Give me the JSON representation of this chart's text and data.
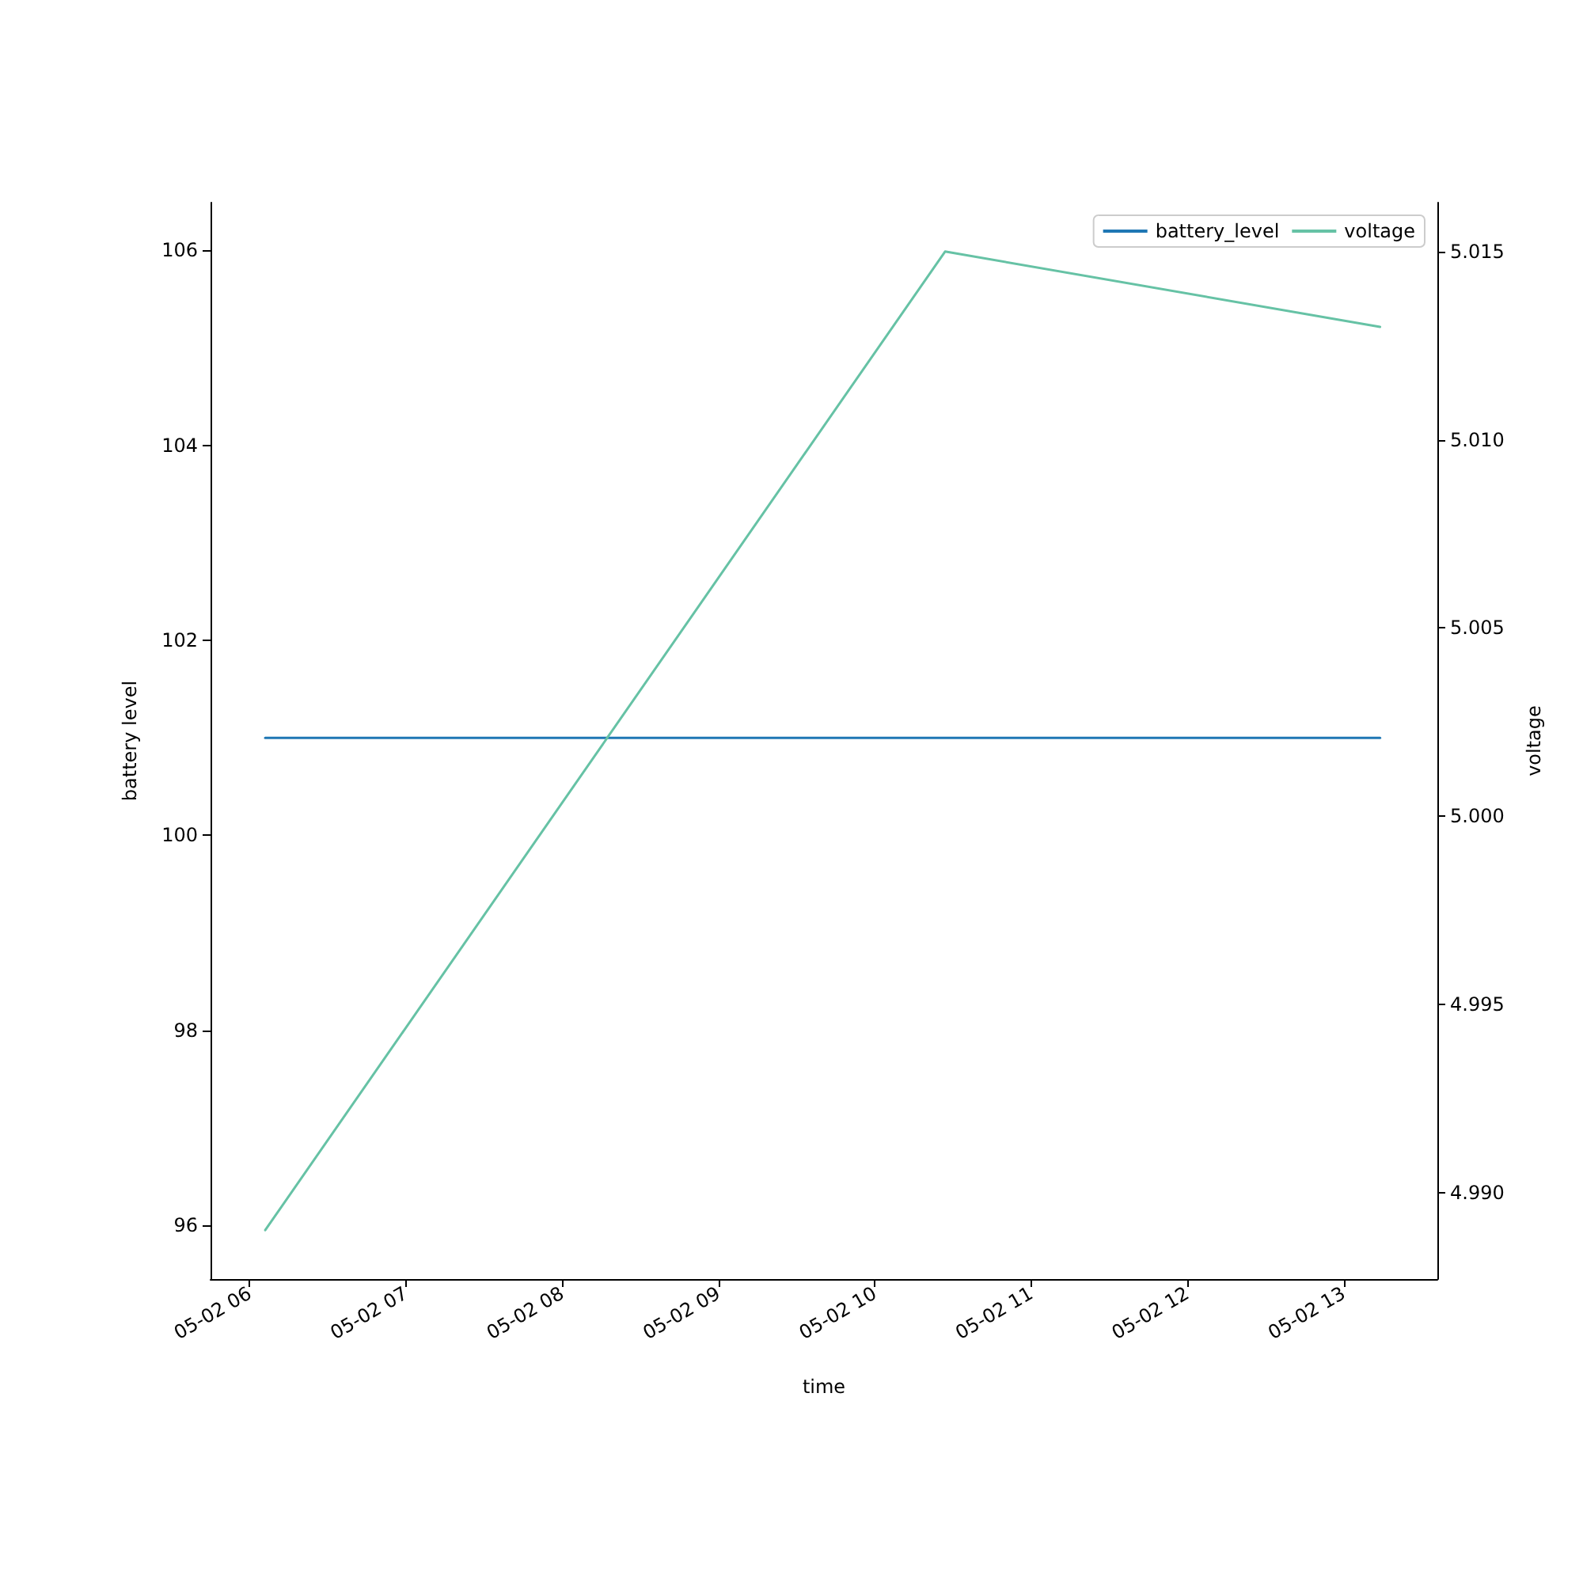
{
  "chart_data": {
    "type": "line",
    "xlabel": "time",
    "ylabel": "battery level",
    "y2label": "voltage",
    "x": [
      "--05-02T06:06",
      "--05-02T10:27",
      "--05-02T13:14"
    ],
    "series": [
      {
        "name": "battery_level",
        "color": "#1f77b4",
        "values": [
          101,
          101,
          101
        ]
      },
      {
        "name": "voltage",
        "color": "#66c2a5",
        "values": [
          4.989,
          5.015,
          5.013
        ],
        "axis": "y2"
      }
    ],
    "xlim": [
      "--05-02T05:45",
      "--05-02T13:36"
    ],
    "xticks": [
      {
        "value": "--05-02T06:00",
        "label": "05-02 06"
      },
      {
        "value": "--05-02T07:00",
        "label": "05-02 07"
      },
      {
        "value": "--05-02T08:00",
        "label": "05-02 08"
      },
      {
        "value": "--05-02T09:00",
        "label": "05-02 09"
      },
      {
        "value": "--05-02T10:00",
        "label": "05-02 10"
      },
      {
        "value": "--05-02T11:00",
        "label": "05-02 11"
      },
      {
        "value": "--05-02T12:00",
        "label": "05-02 12"
      },
      {
        "value": "--05-02T13:00",
        "label": "05-02 13"
      }
    ],
    "ylim": [
      95.45,
      106.49
    ],
    "yticks": [
      96,
      98,
      100,
      102,
      104,
      106
    ],
    "y2lim": [
      4.9877,
      5.0163
    ],
    "y2ticks": [
      {
        "value": 4.99,
        "label": "4.990"
      },
      4.995,
      {
        "value": 5.0,
        "label": "5.000"
      },
      5.005,
      {
        "value": 5.01,
        "label": "5.010"
      },
      5.015
    ],
    "legend": "top right",
    "grid": false,
    "marker": "none",
    "line_style": "solid"
  }
}
